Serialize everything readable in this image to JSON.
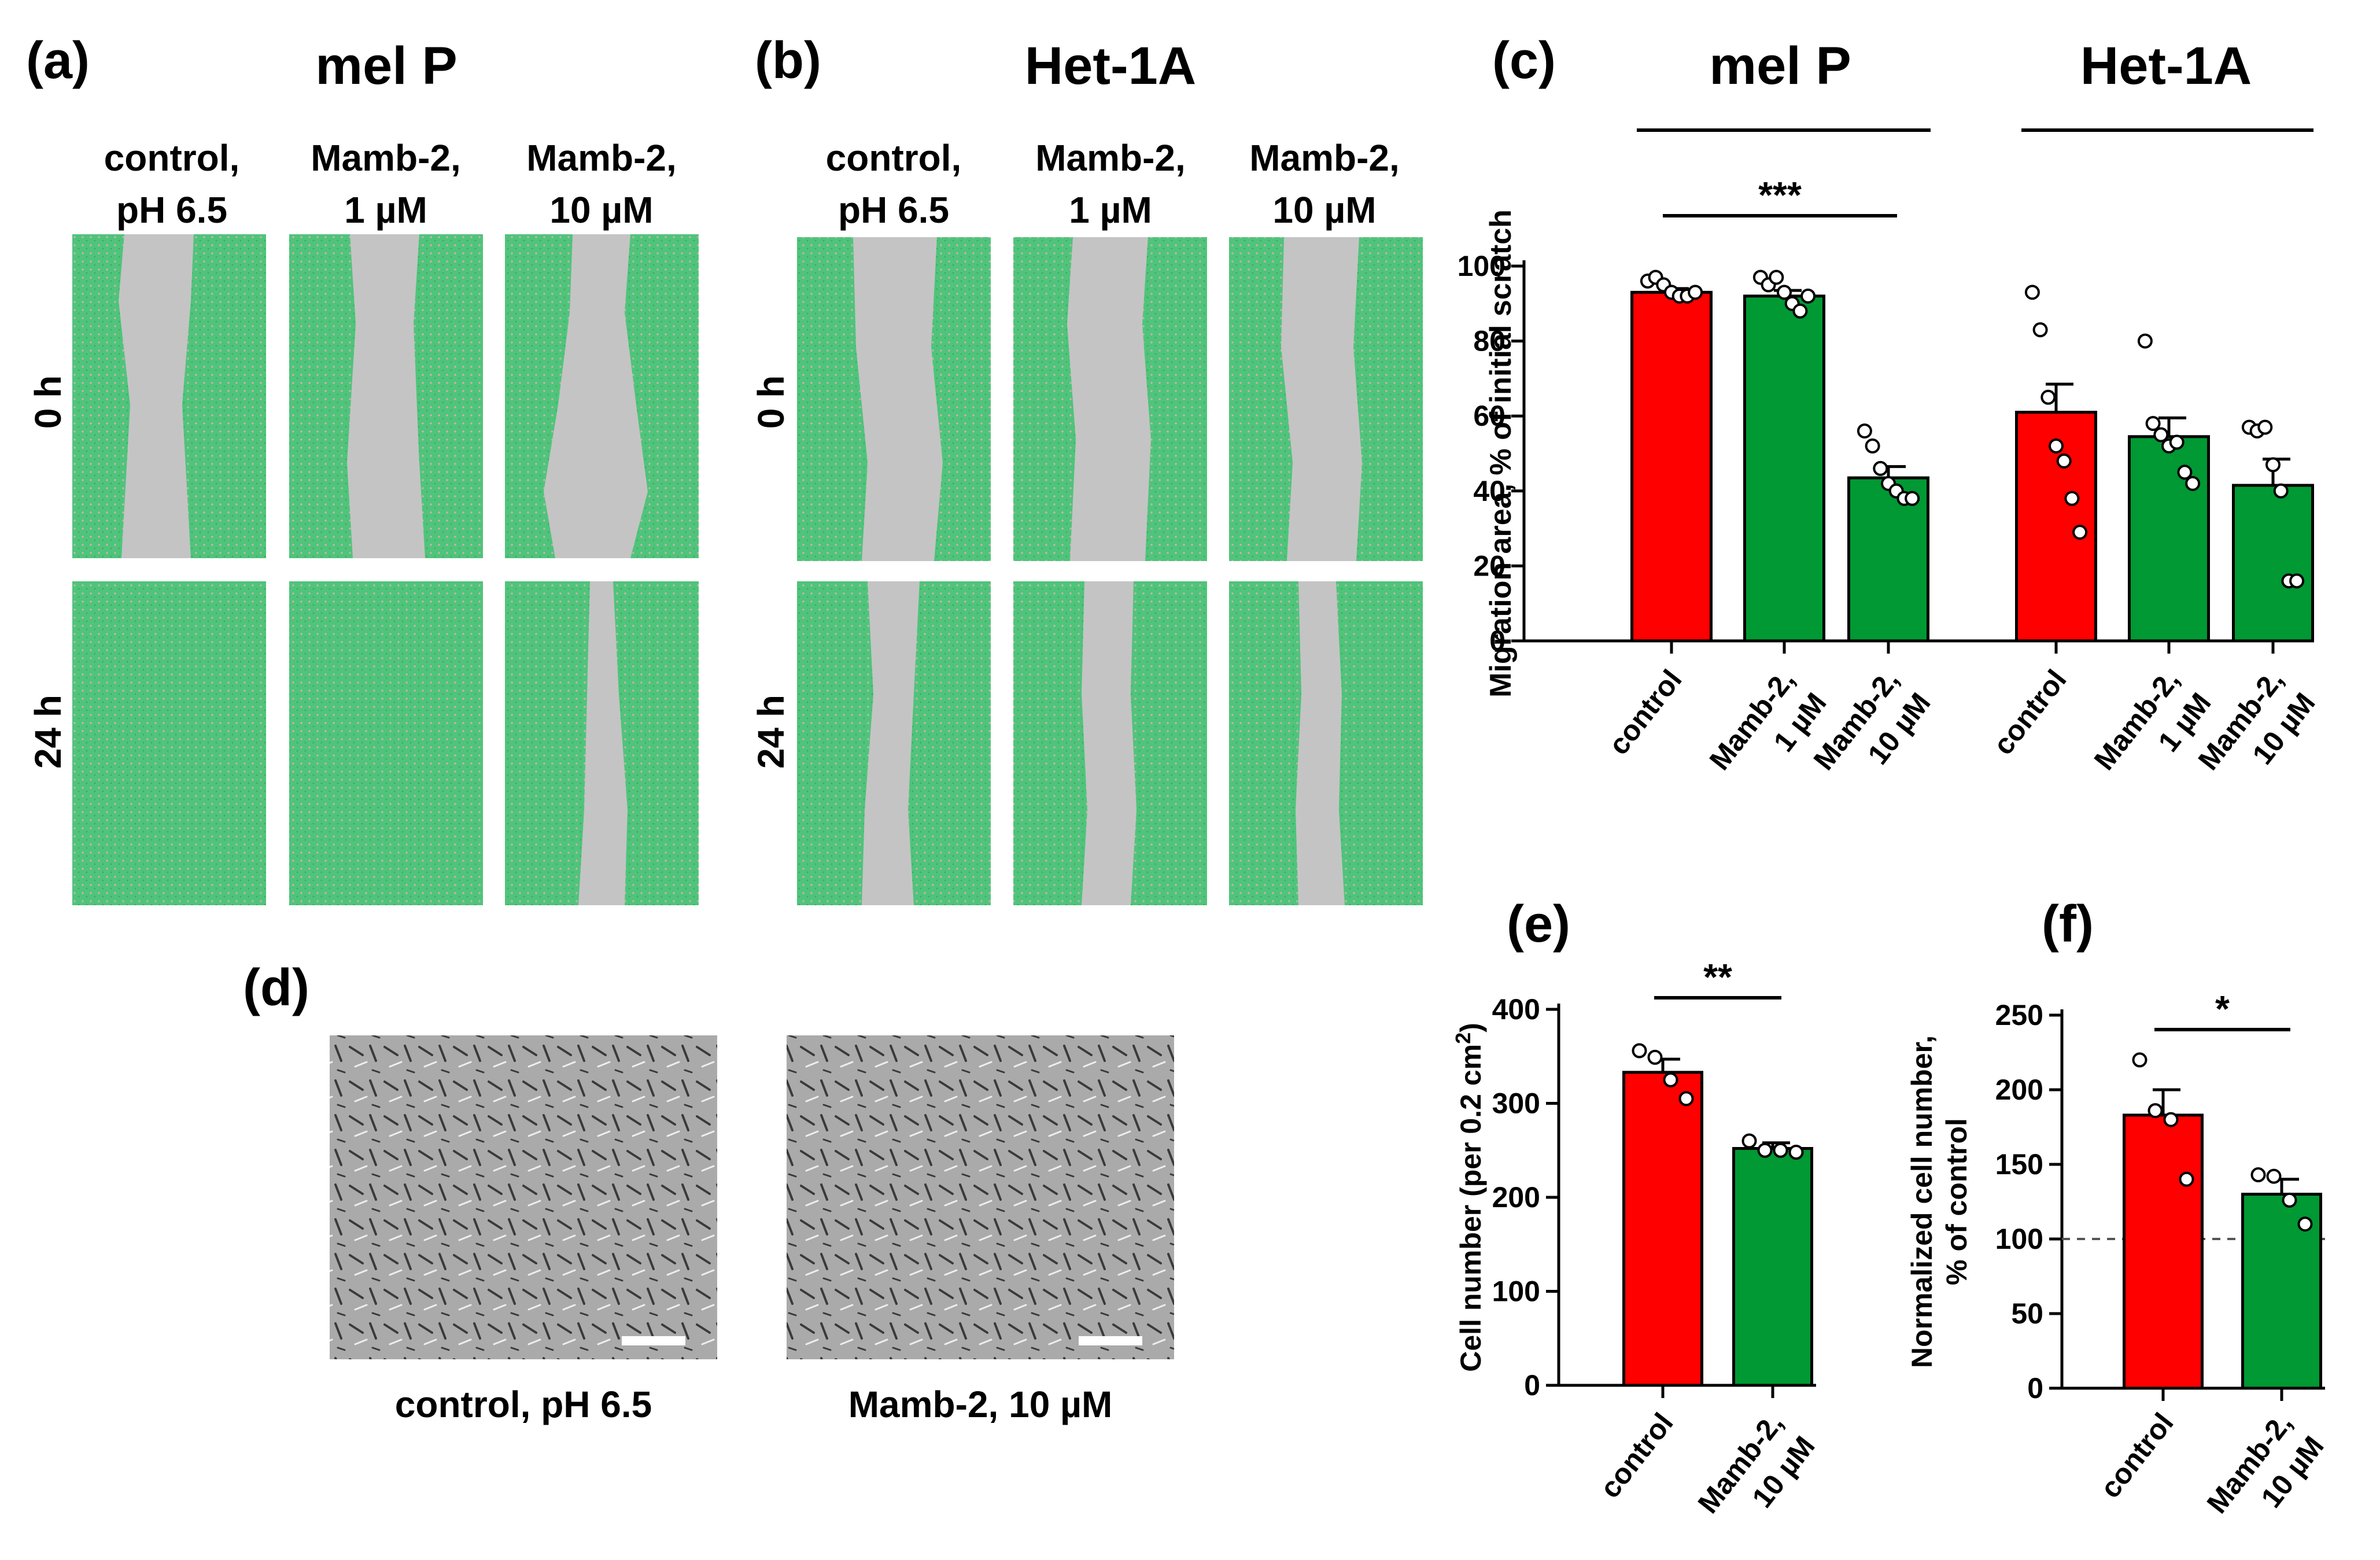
{
  "panel_a": {
    "letter": "(a)",
    "title": "mel P",
    "columns": [
      {
        "line1": "control,",
        "line2": "pH 6.5"
      },
      {
        "line1": "Mamb-2,",
        "line2": "1 µM"
      },
      {
        "line1": "Mamb-2,",
        "line2": "10 µM"
      }
    ],
    "rows": [
      "0 h",
      "24 h"
    ]
  },
  "panel_b": {
    "letter": "(b)",
    "title": "Het-1A",
    "columns": [
      {
        "line1": "control,",
        "line2": "pH 6.5"
      },
      {
        "line1": "Mamb-2,",
        "line2": "1 µM"
      },
      {
        "line1": "Mamb-2,",
        "line2": "10 µM"
      }
    ],
    "rows": [
      "0 h",
      "24 h"
    ]
  },
  "panel_d": {
    "letter": "(d)",
    "captions": [
      "control, pH 6.5",
      "Mamb-2, 10 µM"
    ]
  },
  "colors": {
    "control": "#ff0000",
    "treatment": "#009933",
    "image_green": "#4fc47a",
    "scratch_gray": "#c4c4c4",
    "micrograph_gray": "#a9a9a9"
  },
  "chart_data": [
    {
      "id": "c",
      "letter": "(c)",
      "type": "bar",
      "group_titles": [
        "mel P",
        "Het-1A"
      ],
      "ylabel": "Migration area, % of initial scratch",
      "ylim": [
        0,
        100
      ],
      "yticks": [
        0,
        20,
        40,
        60,
        80,
        100
      ],
      "categories": [
        {
          "line1": "control",
          "line2": ""
        },
        {
          "line1": "Mamb-2,",
          "line2": "1 µM"
        },
        {
          "line1": "Mamb-2,",
          "line2": "10 µM"
        },
        {
          "line1": "control",
          "line2": ""
        },
        {
          "line1": "Mamb-2,",
          "line2": "1 µM"
        },
        {
          "line1": "Mamb-2,",
          "line2": "10 µM"
        }
      ],
      "values": [
        93,
        92,
        43.5,
        61,
        54.5,
        41.5
      ],
      "errors": [
        1,
        1.5,
        3,
        7.5,
        5,
        7
      ],
      "bar_colors": [
        "#ff0000",
        "#009933",
        "#009933",
        "#ff0000",
        "#009933",
        "#009933"
      ],
      "points": [
        [
          96,
          97,
          95,
          93,
          92,
          92,
          93
        ],
        [
          97,
          95,
          97,
          93,
          90,
          88,
          92
        ],
        [
          56,
          52,
          46,
          42,
          40,
          38,
          38
        ],
        [
          93,
          83,
          65,
          52,
          48,
          38,
          29
        ],
        [
          80,
          58,
          55,
          52,
          53,
          45,
          42
        ],
        [
          57,
          56,
          57,
          47,
          40,
          16,
          16
        ]
      ],
      "significance": [
        {
          "from": 0,
          "to": 2,
          "label": "***"
        }
      ]
    },
    {
      "id": "e",
      "letter": "(e)",
      "type": "bar",
      "ylabel": "Cell number (per 0.2 cm",
      "ylabel_sup": "2",
      "ylabel_end": ")",
      "ylim": [
        0,
        400
      ],
      "yticks": [
        0,
        100,
        200,
        300,
        400
      ],
      "categories": [
        {
          "line1": "control",
          "line2": ""
        },
        {
          "line1": "Mamb-2,",
          "line2": "10 µM"
        }
      ],
      "values": [
        333,
        252
      ],
      "errors": [
        14,
        6
      ],
      "bar_colors": [
        "#ff0000",
        "#009933"
      ],
      "points": [
        [
          356,
          349,
          325,
          305
        ],
        [
          260,
          250,
          250,
          248
        ]
      ],
      "significance": [
        {
          "from": 0,
          "to": 1,
          "label": "**"
        }
      ]
    },
    {
      "id": "f",
      "letter": "(f)",
      "type": "bar",
      "ylabel": "Normalized cell number,",
      "ylabel2": "% of control",
      "ylim": [
        0,
        250
      ],
      "yticks": [
        0,
        50,
        100,
        150,
        200,
        250
      ],
      "categories": [
        {
          "line1": "control",
          "line2": ""
        },
        {
          "line1": "Mamb-2,",
          "line2": "10 µM"
        }
      ],
      "values": [
        183,
        130
      ],
      "errors": [
        17,
        10
      ],
      "bar_colors": [
        "#ff0000",
        "#009933"
      ],
      "points": [
        [
          220,
          186,
          180,
          140
        ],
        [
          143,
          142,
          126,
          110
        ]
      ],
      "reference_line": 100,
      "significance": [
        {
          "from": 0,
          "to": 1,
          "label": "*"
        }
      ]
    }
  ]
}
